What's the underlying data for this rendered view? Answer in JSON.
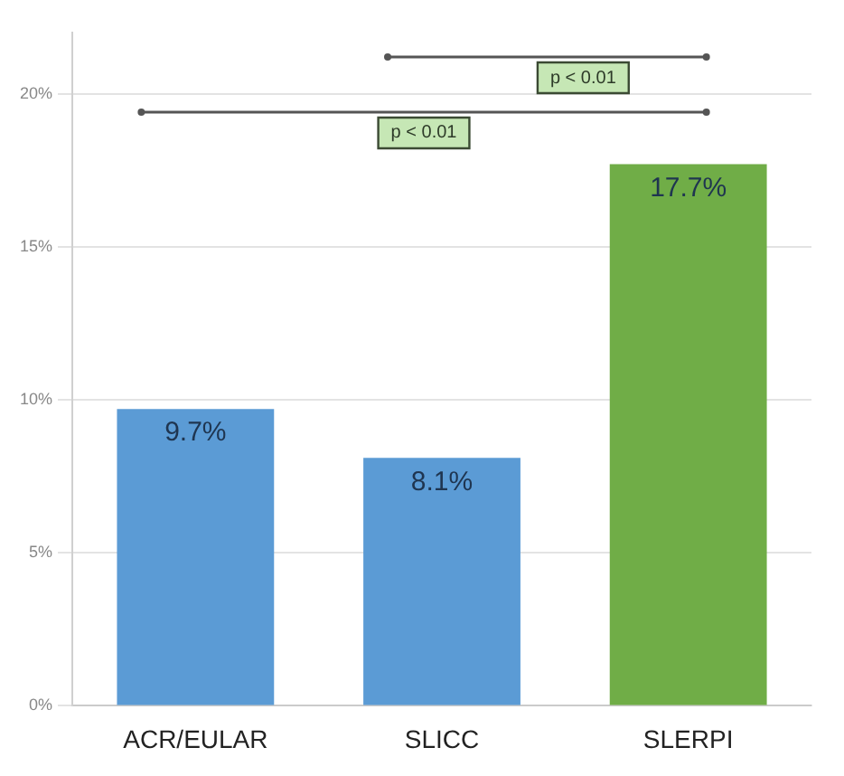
{
  "chart_data": {
    "type": "bar",
    "categories": [
      "ACR/EULAR",
      "SLICC",
      "SLERPI"
    ],
    "values": [
      9.7,
      8.1,
      17.7
    ],
    "colors": [
      "#5b9bd5",
      "#5b9bd5",
      "#70ad47"
    ],
    "value_labels": [
      "9.7%",
      "8.1%",
      "17.7%"
    ],
    "ylim": [
      0,
      22
    ],
    "yticks": [
      {
        "value": 0,
        "label": "0%"
      },
      {
        "value": 5,
        "label": "5%"
      },
      {
        "value": 10,
        "label": "10%"
      },
      {
        "value": 15,
        "label": "15%"
      },
      {
        "value": 20,
        "label": "20%"
      }
    ],
    "grid": "y",
    "legend": false,
    "annotations": [
      "p < 0.01",
      "p < 0.01"
    ]
  }
}
